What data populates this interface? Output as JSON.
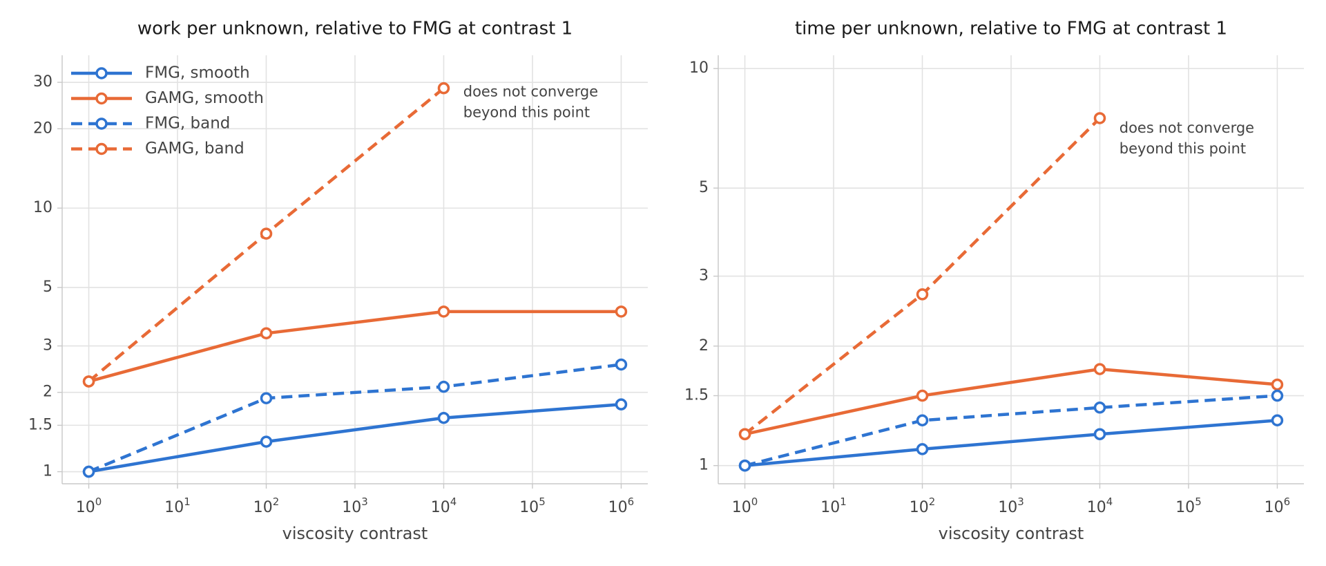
{
  "colors": {
    "fmg": "#2e74d1",
    "gamg": "#e86a36"
  },
  "chart_data": [
    {
      "type": "line",
      "title": "work per unknown, relative to FMG at contrast 1",
      "xlabel": "viscosity contrast",
      "ylabel": "",
      "xscale": "log",
      "yscale": "log",
      "xlim_exp": [
        -0.3,
        6.3
      ],
      "ylim": [
        0.9,
        38
      ],
      "xticks_exp": [
        0,
        1,
        2,
        3,
        4,
        5,
        6
      ],
      "xtick_base": "10",
      "yticks": [
        1,
        1.5,
        2,
        3,
        5,
        10,
        20,
        30
      ],
      "ytick_labels": [
        "1",
        "1.5",
        "2",
        "3",
        "5",
        "10",
        "20",
        "30"
      ],
      "grid": true,
      "legend": "top-left",
      "series": [
        {
          "name": "FMG, smooth",
          "color": "#2e74d1",
          "dash": false,
          "x_exp": [
            0,
            2,
            4,
            6
          ],
          "y": [
            1.0,
            1.3,
            1.6,
            1.8
          ]
        },
        {
          "name": "GAMG, smooth",
          "color": "#e86a36",
          "dash": false,
          "x_exp": [
            0,
            2,
            4,
            6
          ],
          "y": [
            2.2,
            3.35,
            4.05,
            4.05
          ]
        },
        {
          "name": "FMG, band",
          "color": "#2e74d1",
          "dash": true,
          "x_exp": [
            0,
            2,
            4,
            6
          ],
          "y": [
            1.0,
            1.9,
            2.1,
            2.55
          ]
        },
        {
          "name": "GAMG, band",
          "color": "#e86a36",
          "dash": true,
          "x_exp": [
            0,
            2,
            4
          ],
          "y": [
            2.2,
            8.0,
            28.5
          ]
        }
      ],
      "annotation": {
        "lines": [
          "does not converge",
          "beyond this point"
        ],
        "x_exp": 4.22,
        "y": 26.5
      }
    },
    {
      "type": "line",
      "title": "time per unknown, relative to FMG at contrast 1",
      "xlabel": "viscosity contrast",
      "ylabel": "",
      "xscale": "log",
      "yscale": "log",
      "xlim_exp": [
        -0.3,
        6.3
      ],
      "ylim": [
        0.9,
        10.8
      ],
      "xticks_exp": [
        0,
        1,
        2,
        3,
        4,
        5,
        6
      ],
      "xtick_base": "10",
      "yticks": [
        1,
        1.5,
        2,
        3,
        5,
        10
      ],
      "ytick_labels": [
        "1",
        "1.5",
        "2",
        "3",
        "5",
        "10"
      ],
      "grid": true,
      "series": [
        {
          "color": "#2e74d1",
          "dash": false,
          "x_exp": [
            0,
            2,
            4,
            6
          ],
          "y": [
            1.0,
            1.1,
            1.2,
            1.3
          ]
        },
        {
          "color": "#e86a36",
          "dash": false,
          "x_exp": [
            0,
            2,
            4,
            6
          ],
          "y": [
            1.2,
            1.5,
            1.75,
            1.6
          ]
        },
        {
          "color": "#2e74d1",
          "dash": true,
          "x_exp": [
            0,
            2,
            4,
            6
          ],
          "y": [
            1.0,
            1.3,
            1.4,
            1.5
          ]
        },
        {
          "color": "#e86a36",
          "dash": true,
          "x_exp": [
            0,
            2,
            4
          ],
          "y": [
            1.2,
            2.7,
            7.5
          ]
        }
      ],
      "annotation": {
        "lines": [
          "does not converge",
          "beyond this point"
        ],
        "x_exp": 4.22,
        "y": 6.9
      }
    }
  ]
}
